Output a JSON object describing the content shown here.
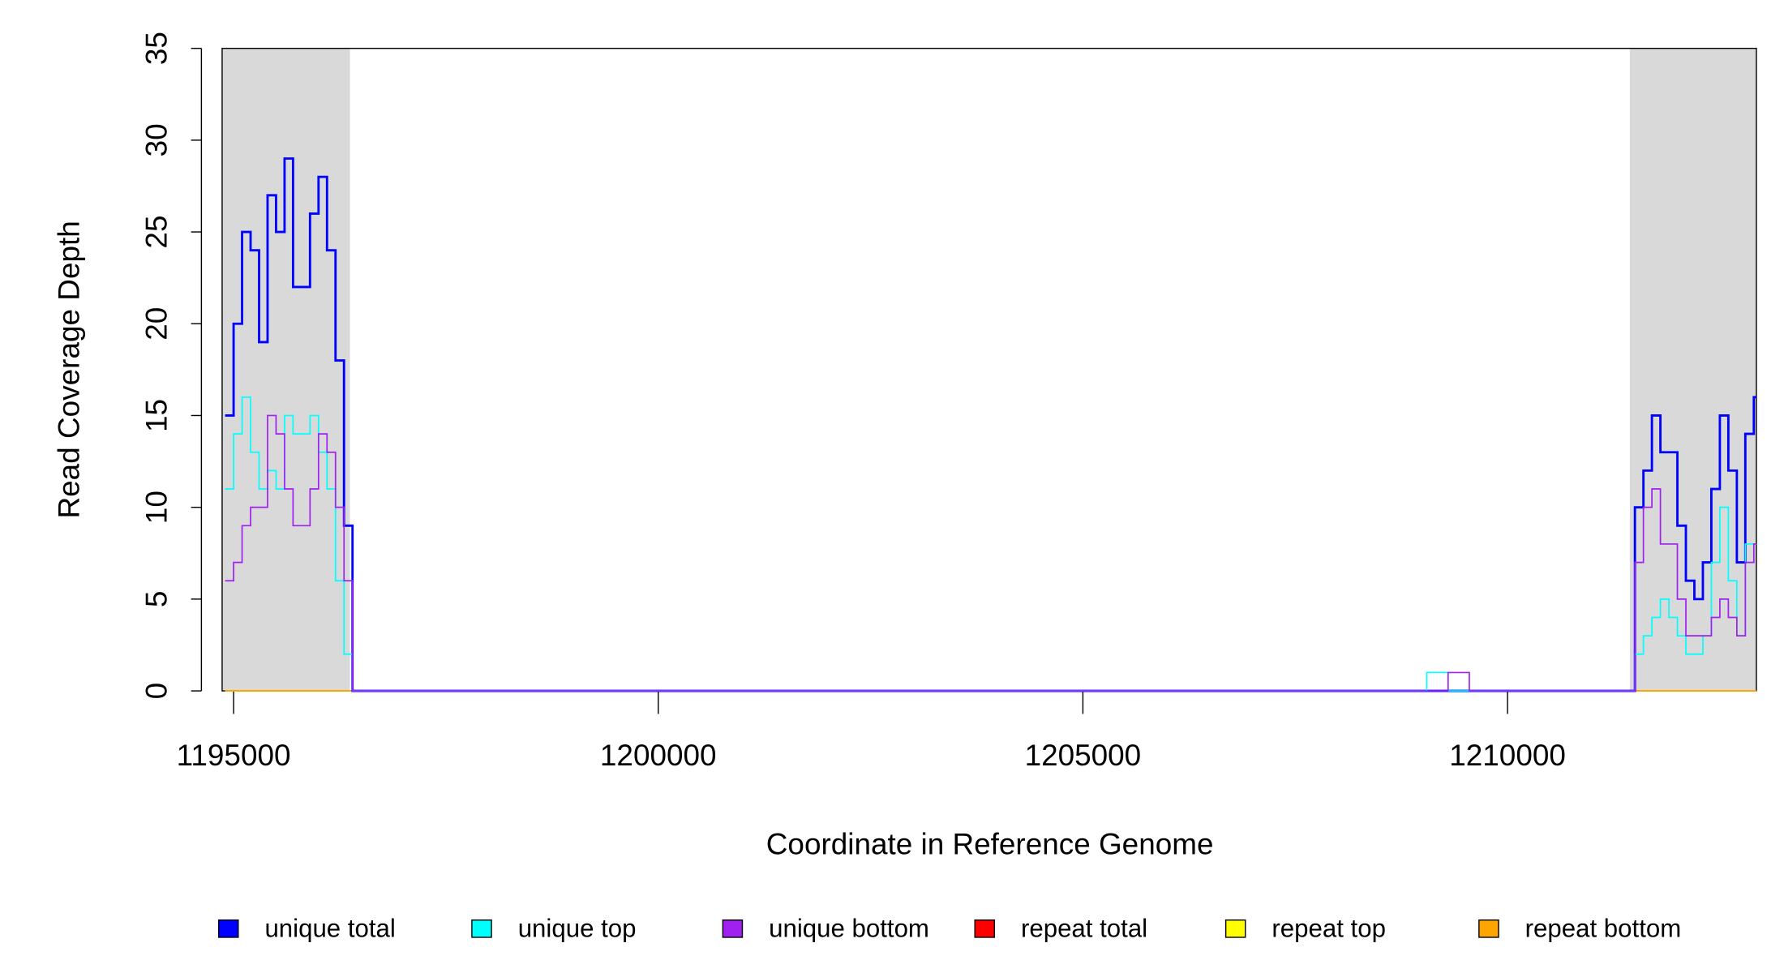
{
  "chart_data": {
    "type": "line",
    "step": true,
    "xlabel": "Coordinate in Reference Genome",
    "ylabel": "Read Coverage Depth",
    "x": [
      1194900,
      1195000,
      1195100,
      1195200,
      1195300,
      1195400,
      1195500,
      1195600,
      1195700,
      1195800,
      1195900,
      1196000,
      1196100,
      1196200,
      1196300,
      1196400,
      1209050,
      1209300,
      1209550,
      1211400,
      1211500,
      1211600,
      1211700,
      1211800,
      1211900,
      1212000,
      1212100,
      1212200,
      1212300,
      1212400,
      1212500,
      1212600,
      1212700,
      1212800,
      1212900
    ],
    "series": [
      {
        "name": "unique total",
        "color": "#0000ff",
        "values": [
          15,
          20,
          25,
          24,
          19,
          27,
          25,
          29,
          22,
          22,
          26,
          28,
          24,
          18,
          9,
          0,
          0,
          0,
          0,
          0,
          10,
          12,
          15,
          13,
          13,
          9,
          6,
          5,
          7,
          11,
          15,
          12,
          7,
          14,
          16
        ]
      },
      {
        "name": "unique top",
        "color": "#00ffff",
        "values": [
          11,
          14,
          16,
          13,
          11,
          12,
          11,
          15,
          14,
          14,
          15,
          13,
          11,
          6,
          2,
          0,
          1,
          0,
          0,
          0,
          2,
          3,
          4,
          5,
          4,
          3,
          2,
          2,
          3,
          7,
          10,
          6,
          3,
          8,
          8
        ]
      },
      {
        "name": "unique bottom",
        "color": "#a020f0",
        "values": [
          6,
          7,
          9,
          10,
          10,
          15,
          14,
          11,
          9,
          9,
          11,
          14,
          13,
          10,
          6,
          0,
          0,
          1,
          0,
          0,
          7,
          10,
          11,
          8,
          8,
          5,
          3,
          3,
          3,
          4,
          5,
          4,
          3,
          7,
          8
        ]
      },
      {
        "name": "repeat total",
        "color": "#ff0000",
        "values": [
          0,
          0,
          0,
          0,
          0,
          0,
          0,
          0,
          0,
          0,
          0,
          0,
          0,
          0,
          0,
          0,
          0,
          0,
          0,
          0,
          0,
          0,
          0,
          0,
          0,
          0,
          0,
          0,
          0,
          0,
          0,
          0,
          0,
          0,
          0
        ]
      },
      {
        "name": "repeat top",
        "color": "#ffff00",
        "values": [
          0,
          0,
          0,
          0,
          0,
          0,
          0,
          0,
          0,
          0,
          0,
          0,
          0,
          0,
          0,
          0,
          0,
          0,
          0,
          0,
          0,
          0,
          0,
          0,
          0,
          0,
          0,
          0,
          0,
          0,
          0,
          0,
          0,
          0,
          0
        ]
      },
      {
        "name": "repeat bottom",
        "color": "#ffa500",
        "values": [
          0,
          0,
          0,
          0,
          0,
          0,
          0,
          0,
          0,
          0,
          0,
          0,
          0,
          0,
          0,
          0,
          0,
          0,
          0,
          0,
          0,
          0,
          0,
          0,
          0,
          0,
          0,
          0,
          0,
          0,
          0,
          0,
          0,
          0,
          0
        ]
      }
    ],
    "shaded_regions": [
      [
        1194865,
        1196370
      ],
      [
        1211440,
        1212930
      ]
    ],
    "shade_color": "#d9d9d9",
    "xlim": [
      1194865,
      1212930
    ],
    "xticks": [
      1195000,
      1200000,
      1205000,
      1210000
    ],
    "ylim": [
      0,
      35
    ],
    "yticks": [
      0,
      5,
      10,
      15,
      20,
      25,
      30,
      35
    ],
    "legend": "bottom"
  }
}
